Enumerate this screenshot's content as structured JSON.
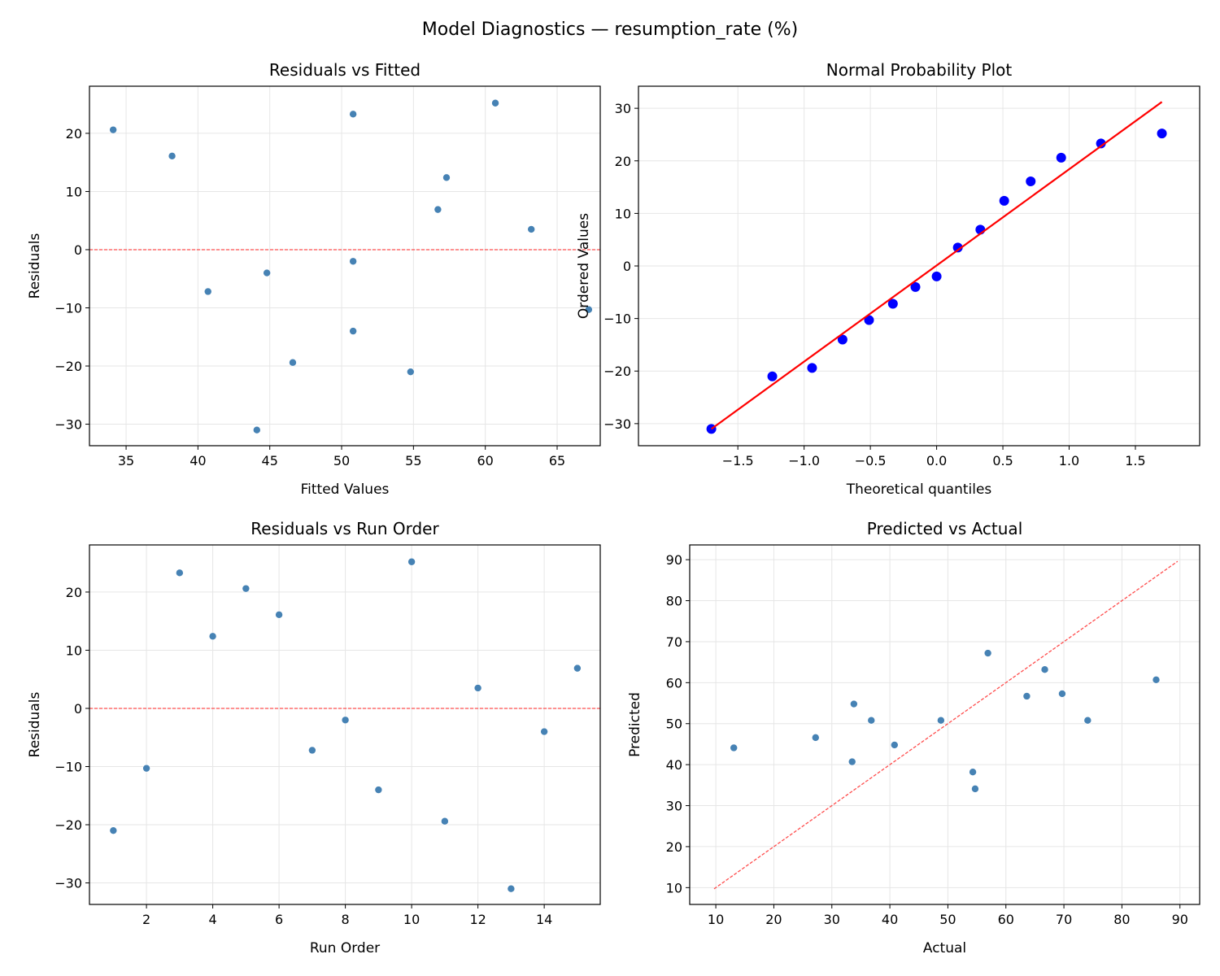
{
  "suptitle": "Model Diagnostics — resumption_rate (%)",
  "chart_data": [
    {
      "type": "scatter",
      "title": "Residuals vs Fitted",
      "xlabel": "Fitted Values",
      "ylabel": "Residuals",
      "xlim": [
        32.45,
        68.0
      ],
      "ylim": [
        -33.7,
        28.1
      ],
      "xticks": [
        35,
        40,
        45,
        50,
        55,
        60,
        65
      ],
      "yticks": [
        -30,
        -20,
        -10,
        0,
        10,
        20
      ],
      "grid": true,
      "x": [
        54.8,
        67.2,
        50.8,
        57.3,
        34.1,
        38.2,
        40.7,
        50.8,
        50.8,
        60.7,
        46.6,
        63.2,
        44.1,
        44.8,
        56.7
      ],
      "y": [
        -21.0,
        -10.3,
        23.3,
        12.4,
        20.6,
        16.1,
        -7.2,
        -2.0,
        -14.0,
        25.2,
        -19.4,
        3.5,
        -31.0,
        -4.0,
        6.9
      ],
      "point_color": "#4682b4",
      "reference_line": {
        "type": "horizontal",
        "y": 0,
        "style": "dashed",
        "color": "#ff4d4d"
      }
    },
    {
      "type": "scatter",
      "title": "Normal Probability Plot",
      "xlabel": "Theoretical quantiles",
      "ylabel": "Ordered Values",
      "xlim": [
        -2.25,
        1.985
      ],
      "ylim": [
        -34.2,
        34.2
      ],
      "xticks": [
        -1.5,
        -1.0,
        -0.5,
        0.0,
        0.5,
        1.0,
        1.5
      ],
      "yticks": [
        -30,
        -20,
        -10,
        0,
        10,
        20,
        30
      ],
      "grid": true,
      "x": [
        -1.7,
        -1.24,
        -0.94,
        -0.71,
        -0.51,
        -0.33,
        -0.16,
        0.0,
        0.16,
        0.33,
        0.51,
        0.71,
        0.94,
        1.24,
        1.7
      ],
      "y": [
        -31.0,
        -21.0,
        -19.4,
        -14.0,
        -10.3,
        -7.2,
        -4.0,
        -2.0,
        3.5,
        6.9,
        12.4,
        16.1,
        20.6,
        23.3,
        25.2
      ],
      "point_color": "#0000ff",
      "fit_line": {
        "slope": 18.3,
        "intercept": 0.1,
        "x_range": [
          -1.7,
          1.7
        ],
        "color": "#ff0000"
      }
    },
    {
      "type": "scatter",
      "title": "Residuals vs Run Order",
      "xlabel": "Run Order",
      "ylabel": "Residuals",
      "xlim": [
        0.28,
        15.69
      ],
      "ylim": [
        -33.7,
        28.1
      ],
      "xticks": [
        2,
        4,
        6,
        8,
        10,
        12,
        14
      ],
      "yticks": [
        -30,
        -20,
        -10,
        0,
        10,
        20
      ],
      "grid": true,
      "x": [
        1,
        2,
        3,
        4,
        5,
        6,
        7,
        8,
        9,
        10,
        11,
        12,
        13,
        14,
        15
      ],
      "y": [
        -21.0,
        -10.3,
        23.3,
        12.4,
        20.6,
        16.1,
        -7.2,
        -2.0,
        -14.0,
        25.2,
        -19.4,
        3.5,
        -31.0,
        -4.0,
        6.9
      ],
      "point_color": "#4682b4",
      "reference_line": {
        "type": "horizontal",
        "y": 0,
        "style": "dashed",
        "color": "#ff4d4d"
      }
    },
    {
      "type": "scatter",
      "title": "Predicted vs Actual",
      "xlabel": "Actual",
      "ylabel": "Predicted",
      "xlim": [
        5.5,
        93.4
      ],
      "ylim": [
        5.9,
        93.6
      ],
      "xticks": [
        10,
        20,
        30,
        40,
        50,
        60,
        70,
        80,
        90
      ],
      "yticks": [
        10,
        20,
        30,
        40,
        50,
        60,
        70,
        80,
        90
      ],
      "grid": true,
      "x": [
        33.8,
        56.9,
        74.1,
        69.7,
        54.7,
        54.3,
        33.5,
        48.8,
        36.8,
        85.9,
        27.2,
        66.7,
        13.1,
        40.8,
        63.6
      ],
      "y": [
        54.8,
        67.2,
        50.8,
        57.3,
        34.1,
        38.2,
        40.7,
        50.8,
        50.8,
        60.7,
        46.6,
        63.2,
        44.1,
        44.8,
        56.7
      ],
      "point_color": "#4682b4",
      "reference_line": {
        "type": "identity",
        "range": [
          9.7,
          89.6
        ],
        "style": "dashed",
        "color": "#ff4d4d"
      }
    }
  ]
}
